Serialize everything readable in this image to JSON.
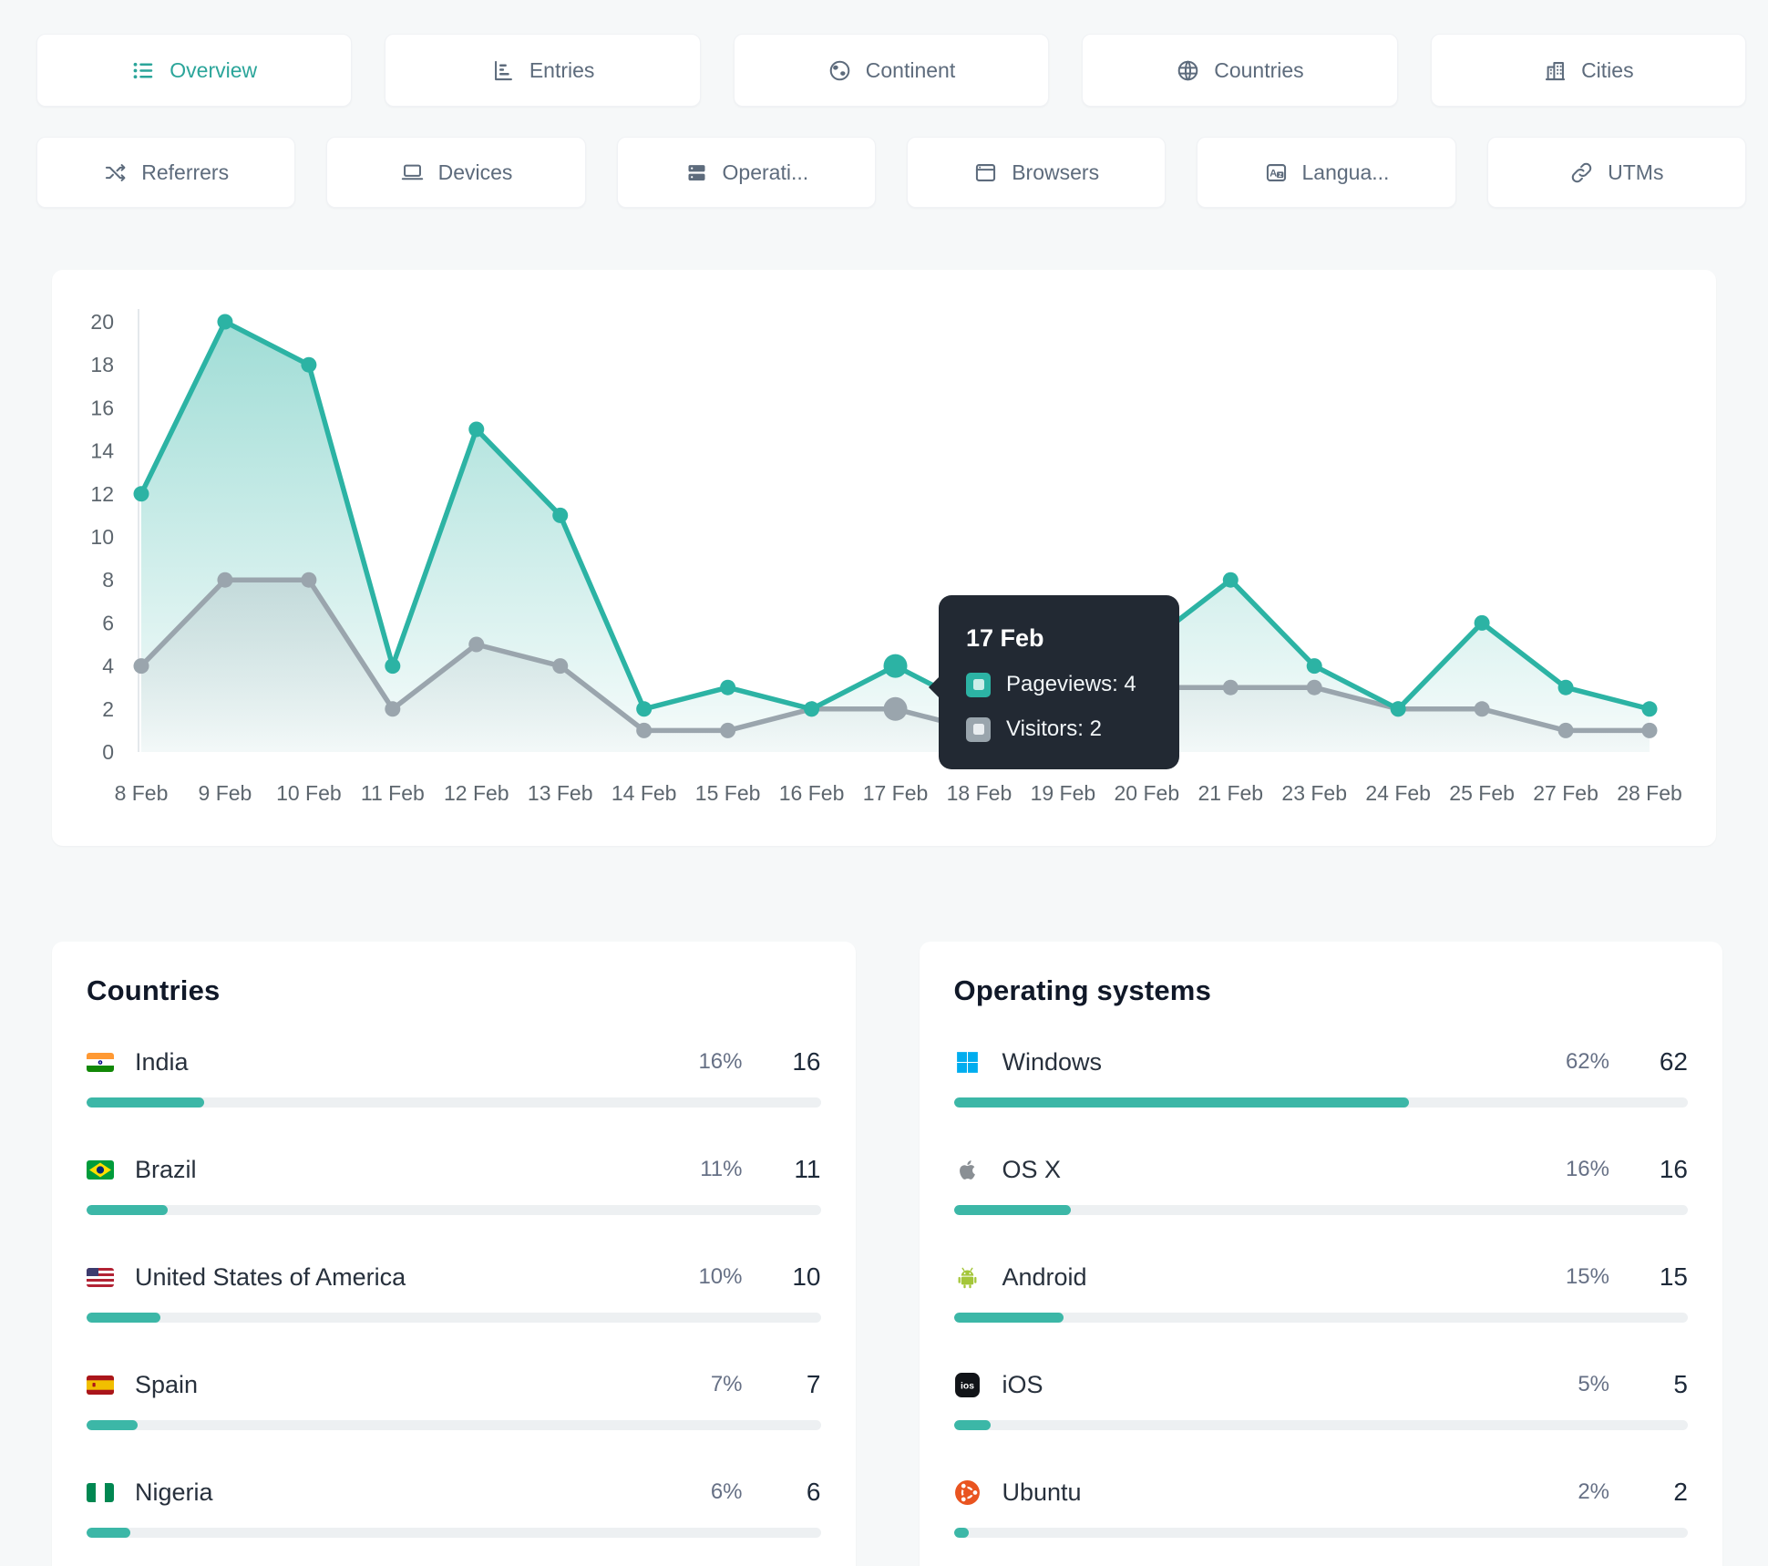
{
  "accent": "#2ba59a",
  "page_bg": "#f6f8f9",
  "tabs_row1": [
    {
      "label": "Overview",
      "icon": "list",
      "active": true
    },
    {
      "label": "Entries",
      "icon": "bar-chart",
      "active": false
    },
    {
      "label": "Continent",
      "icon": "earth",
      "active": false
    },
    {
      "label": "Countries",
      "icon": "globe",
      "active": false
    },
    {
      "label": "Cities",
      "icon": "building",
      "active": false
    }
  ],
  "tabs_row2": [
    {
      "label": "Referrers",
      "icon": "shuffle",
      "active": false
    },
    {
      "label": "Devices",
      "icon": "laptop",
      "active": false
    },
    {
      "label": "Operati...",
      "icon": "server",
      "active": false
    },
    {
      "label": "Browsers",
      "icon": "browser",
      "active": false
    },
    {
      "label": "Langua...",
      "icon": "translate",
      "active": false
    },
    {
      "label": "UTMs",
      "icon": "link",
      "active": false
    }
  ],
  "chart_data": {
    "type": "line",
    "x": [
      "8 Feb",
      "9 Feb",
      "10 Feb",
      "11 Feb",
      "12 Feb",
      "13 Feb",
      "14 Feb",
      "15 Feb",
      "16 Feb",
      "17 Feb",
      "18 Feb",
      "19 Feb",
      "20 Feb",
      "21 Feb",
      "23 Feb",
      "24 Feb",
      "25 Feb",
      "27 Feb",
      "28 Feb"
    ],
    "series": [
      {
        "name": "Pageviews",
        "color": "#2cb3a4",
        "values": [
          12,
          20,
          18,
          4,
          15,
          11,
          2,
          3,
          2,
          4,
          2,
          3,
          5,
          8,
          4,
          2,
          6,
          3,
          2
        ]
      },
      {
        "name": "Visitors",
        "color": "#9aa5ad",
        "values": [
          4,
          8,
          8,
          2,
          5,
          4,
          1,
          1,
          2,
          2,
          1,
          2,
          3,
          3,
          3,
          2,
          2,
          1,
          1
        ]
      }
    ],
    "ylim": [
      0,
      20
    ],
    "ytick_step": 2,
    "grid": false,
    "legend_position": "none",
    "highlight_index": 9
  },
  "tooltip": {
    "title": "17 Feb",
    "rows": [
      {
        "label": "Pageviews: 4",
        "swatch": "#2cb3a4",
        "swatch_inner": "#cdeee9"
      },
      {
        "label": "Visitors: 2",
        "swatch": "#9aa5ad",
        "swatch_inner": "#e9edf0"
      }
    ]
  },
  "countries_panel": {
    "title": "Countries",
    "bar_color": "#3cb7a7",
    "track_color": "#edf0f2",
    "rows": [
      {
        "label": "India",
        "icon": "flag-india",
        "percent": "16%",
        "count": "16",
        "bar_pct": 16
      },
      {
        "label": "Brazil",
        "icon": "flag-brazil",
        "percent": "11%",
        "count": "11",
        "bar_pct": 11
      },
      {
        "label": "United States of America",
        "icon": "flag-usa",
        "percent": "10%",
        "count": "10",
        "bar_pct": 10
      },
      {
        "label": "Spain",
        "icon": "flag-spain",
        "percent": "7%",
        "count": "7",
        "bar_pct": 7
      },
      {
        "label": "Nigeria",
        "icon": "flag-nigeria",
        "percent": "6%",
        "count": "6",
        "bar_pct": 6
      }
    ]
  },
  "os_panel": {
    "title": "Operating systems",
    "bar_color": "#3cb7a7",
    "track_color": "#edf0f2",
    "rows": [
      {
        "label": "Windows",
        "icon": "os-windows",
        "percent": "62%",
        "count": "62",
        "bar_pct": 62
      },
      {
        "label": "OS X",
        "icon": "os-apple",
        "percent": "16%",
        "count": "16",
        "bar_pct": 16
      },
      {
        "label": "Android",
        "icon": "os-android",
        "percent": "15%",
        "count": "15",
        "bar_pct": 15
      },
      {
        "label": "iOS",
        "icon": "os-ios",
        "percent": "5%",
        "count": "5",
        "bar_pct": 5
      },
      {
        "label": "Ubuntu",
        "icon": "os-ubuntu",
        "percent": "2%",
        "count": "2",
        "bar_pct": 2
      }
    ]
  }
}
